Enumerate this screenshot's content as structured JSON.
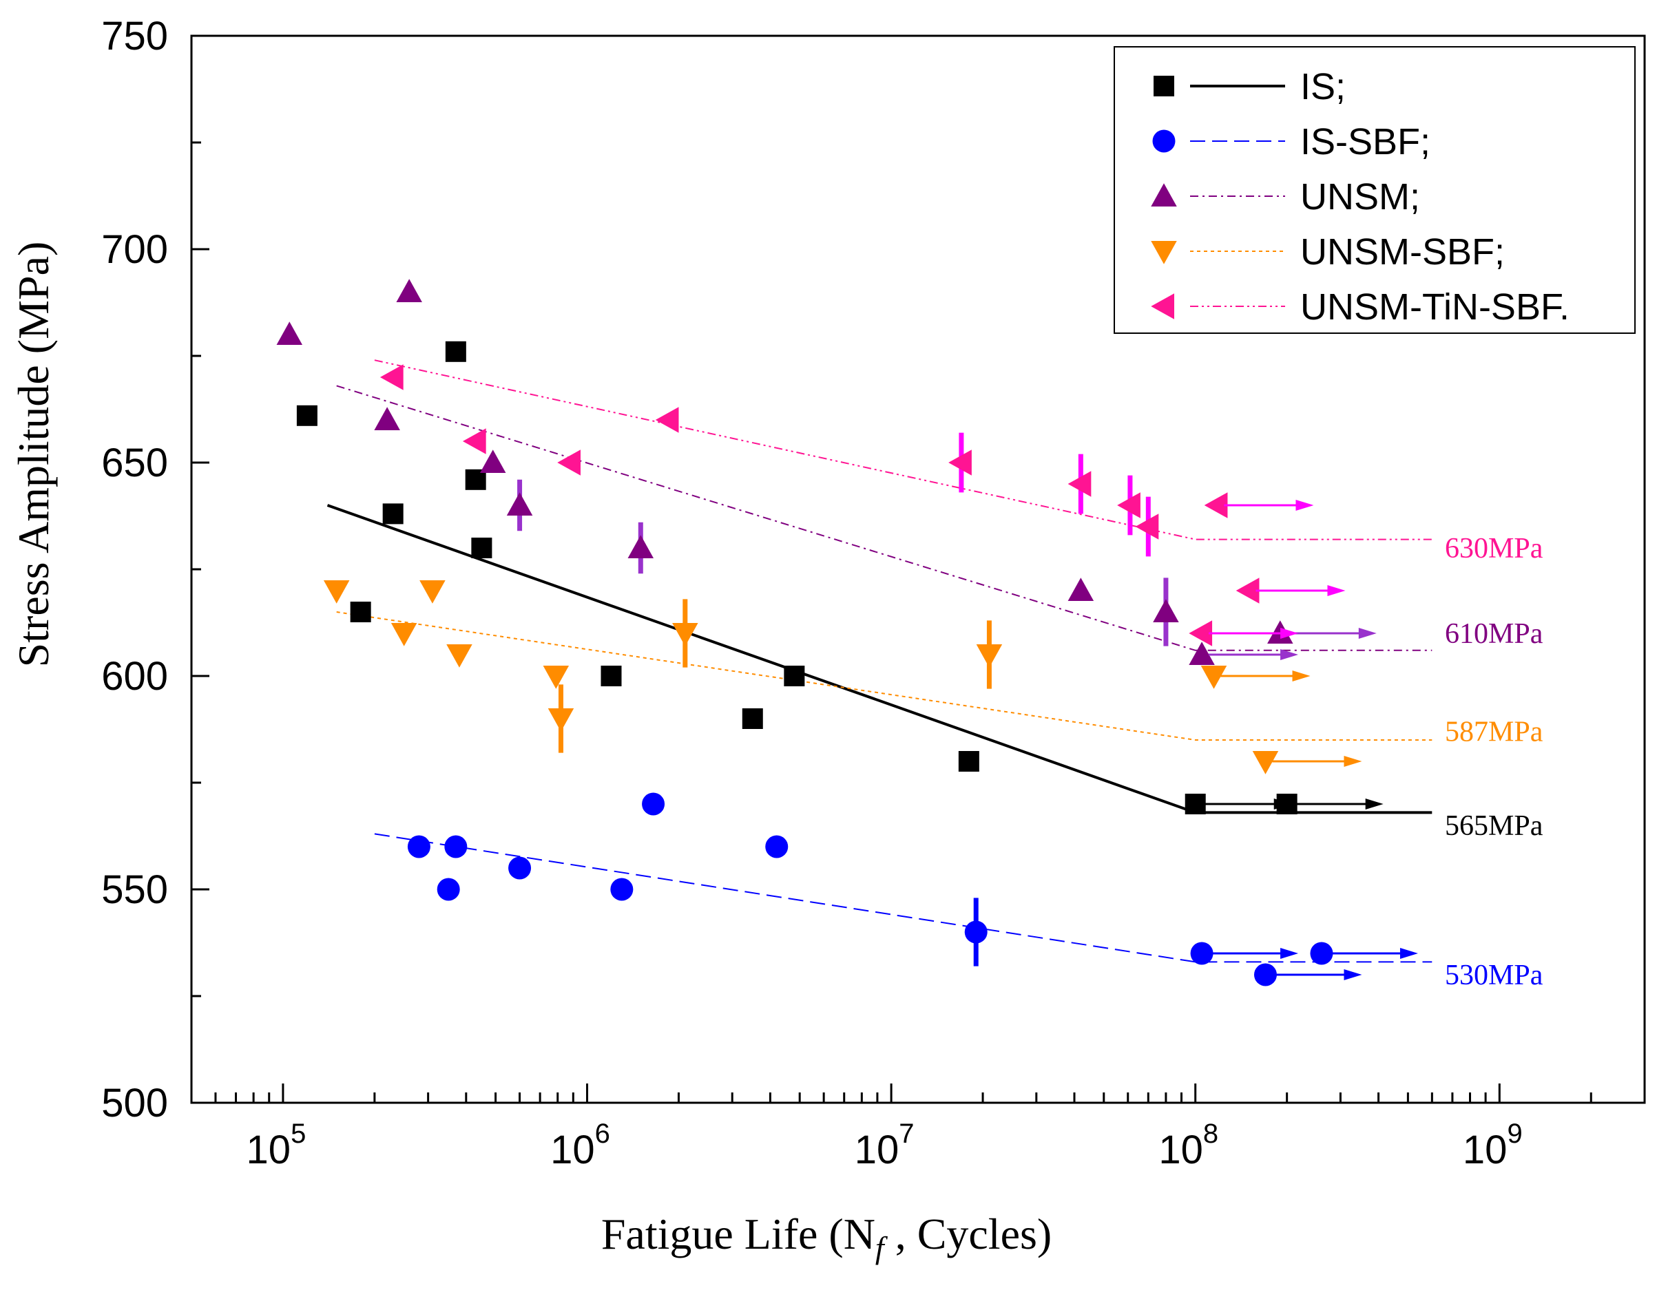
{
  "chart_data": {
    "type": "scatter",
    "xlabel_main": "Fatigue Life (N",
    "xlabel_sub": "f",
    "xlabel_end": " , Cycles)",
    "ylabel": "Stress Amplitude (MPa)",
    "xscale": "log",
    "xlim": [
      50000,
      3000000000
    ],
    "ylim": [
      500,
      750
    ],
    "yticks": [
      "500",
      "550",
      "600",
      "650",
      "700",
      "750"
    ],
    "xticks": [
      {
        "base": "10",
        "exp": "5",
        "value": 100000
      },
      {
        "base": "10",
        "exp": "6",
        "value": 1000000
      },
      {
        "base": "10",
        "exp": "7",
        "value": 10000000
      },
      {
        "base": "10",
        "exp": "8",
        "value": 100000000
      },
      {
        "base": "10",
        "exp": "9",
        "value": 1000000000
      }
    ],
    "legend_position": "top-right",
    "series": [
      {
        "name": "IS;",
        "color": "#000000",
        "marker": "square",
        "line": "solid",
        "points": [
          [
            120000,
            661
          ],
          [
            180000,
            615
          ],
          [
            230000,
            638
          ],
          [
            370000,
            676
          ],
          [
            430000,
            646
          ],
          [
            450000,
            630
          ],
          [
            1200000,
            600
          ],
          [
            3500000,
            590
          ],
          [
            4800000,
            600
          ],
          [
            18000000,
            580
          ],
          [
            100000000,
            570
          ],
          [
            200000000,
            570
          ]
        ],
        "error_bars": [],
        "runouts": [
          [
            100000000,
            570
          ],
          [
            200000000,
            570
          ]
        ],
        "fit": [
          [
            140000,
            640
          ],
          [
            100000000,
            568
          ],
          [
            600000000,
            568
          ]
        ],
        "limit_label": "565MPa",
        "limit_value": 565
      },
      {
        "name": "IS-SBF;",
        "color": "#0000ff",
        "marker": "circle",
        "line": "dash",
        "points": [
          [
            280000,
            560
          ],
          [
            350000,
            550
          ],
          [
            370000,
            560
          ],
          [
            600000,
            555
          ],
          [
            1300000,
            550
          ],
          [
            1650000,
            570
          ],
          [
            4200000,
            560
          ],
          [
            19000000,
            540
          ],
          [
            105000000,
            535
          ],
          [
            170000000,
            530
          ],
          [
            260000000,
            535
          ]
        ],
        "error_bars": [
          [
            19000000,
            540,
            8
          ]
        ],
        "runouts": [
          [
            105000000,
            535
          ],
          [
            170000000,
            530
          ],
          [
            260000000,
            535
          ]
        ],
        "fit": [
          [
            200000,
            563
          ],
          [
            100000000,
            533
          ],
          [
            600000000,
            533
          ]
        ],
        "limit_label": "530MPa",
        "limit_value": 530
      },
      {
        "name": "UNSM;",
        "color": "#800080",
        "marker": "triangle-up",
        "line": "dashdot",
        "points": [
          [
            105000,
            680
          ],
          [
            220000,
            660
          ],
          [
            260000,
            690
          ],
          [
            490000,
            650
          ],
          [
            600000,
            640
          ],
          [
            1500000,
            630
          ],
          [
            42000000,
            620
          ],
          [
            80000000,
            615
          ],
          [
            105000000,
            605
          ],
          [
            190000000,
            610
          ]
        ],
        "error_bars": [
          [
            600000,
            640,
            6
          ],
          [
            1500000,
            630,
            6
          ],
          [
            80000000,
            615,
            8
          ]
        ],
        "runouts": [
          [
            105000000,
            605
          ],
          [
            190000000,
            610
          ]
        ],
        "fit": [
          [
            150000,
            668
          ],
          [
            100000000,
            606
          ],
          [
            600000000,
            606
          ]
        ],
        "limit_label": "610MPa",
        "limit_value": 610
      },
      {
        "name": "UNSM-SBF;",
        "color": "#ff8c00",
        "marker": "triangle-down",
        "line": "dot",
        "points": [
          [
            150000,
            620
          ],
          [
            250000,
            610
          ],
          [
            310000,
            620
          ],
          [
            380000,
            605
          ],
          [
            790000,
            600
          ],
          [
            820000,
            590
          ],
          [
            2100000,
            610
          ],
          [
            21000000,
            605
          ],
          [
            115000000,
            600
          ],
          [
            170000000,
            580
          ]
        ],
        "error_bars": [
          [
            820000,
            590,
            8
          ],
          [
            2100000,
            610,
            8
          ],
          [
            21000000,
            605,
            8
          ]
        ],
        "runouts": [
          [
            115000000,
            600
          ],
          [
            170000000,
            580
          ]
        ],
        "fit": [
          [
            150000,
            615
          ],
          [
            100000000,
            585
          ],
          [
            600000000,
            585
          ]
        ],
        "limit_label": "587MPa",
        "limit_value": 587
      },
      {
        "name": "UNSM-TiN-SBF.",
        "color": "#ff1493",
        "marker": "triangle-left",
        "line": "dashdotdot",
        "points": [
          [
            230000,
            670
          ],
          [
            430000,
            655
          ],
          [
            880000,
            650
          ],
          [
            1850000,
            660
          ],
          [
            17000000,
            650
          ],
          [
            42000000,
            645
          ],
          [
            61000000,
            640
          ],
          [
            70000000,
            635
          ],
          [
            105000000,
            610
          ],
          [
            118000000,
            640
          ],
          [
            150000000,
            620
          ]
        ],
        "error_bars": [
          [
            17000000,
            650,
            7
          ],
          [
            42000000,
            645,
            7
          ],
          [
            61000000,
            640,
            7
          ],
          [
            70000000,
            635,
            7
          ]
        ],
        "runouts": [
          [
            105000000,
            610
          ],
          [
            118000000,
            640
          ],
          [
            150000000,
            620
          ]
        ],
        "fit": [
          [
            200000,
            674
          ],
          [
            100000000,
            632
          ],
          [
            600000000,
            632
          ]
        ],
        "limit_label": "630MPa",
        "limit_value": 630
      }
    ]
  },
  "colors": {
    "axis": "#000000",
    "errorbar_pink": "#ff00ff",
    "errorbar_purple": "#9932cc",
    "errorbar_blue": "#0000ff",
    "errorbar_orange": "#ff8c00",
    "runout_pink": "#ff00ff",
    "runout_purple": "#9932cc"
  }
}
